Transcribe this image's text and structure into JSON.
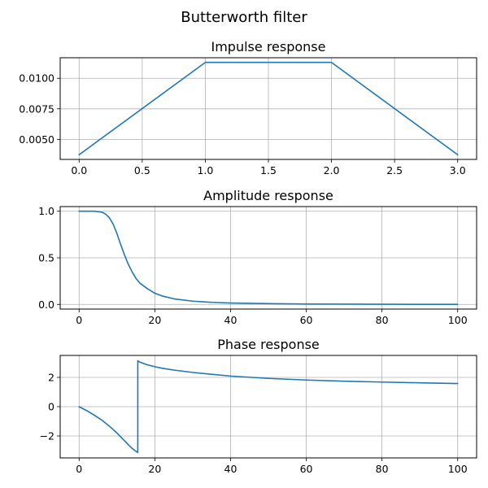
{
  "title": "Butterworth filter",
  "chart_data": [
    {
      "type": "line",
      "title": "Impulse response",
      "xlabel": "",
      "ylabel": "",
      "grid": true,
      "xlim": [
        -0.15,
        3.15
      ],
      "ylim": [
        0.00336,
        0.01168
      ],
      "xticks": [
        0.0,
        0.5,
        1.0,
        1.5,
        2.0,
        2.5,
        3.0
      ],
      "xtick_labels": [
        "0.0",
        "0.5",
        "1.0",
        "1.5",
        "2.0",
        "2.5",
        "3.0"
      ],
      "yticks": [
        0.005,
        0.0075,
        0.01
      ],
      "ytick_labels": [
        "0.0050",
        "0.0075",
        "0.0100"
      ],
      "series": [
        {
          "color": "#1f77b4",
          "x": [
            0,
            1,
            2,
            3
          ],
          "y": [
            0.00374,
            0.0113,
            0.0113,
            0.00374
          ]
        }
      ]
    },
    {
      "type": "line",
      "title": "Amplitude response",
      "xlabel": "",
      "ylabel": "",
      "grid": true,
      "xlim": [
        -5,
        105
      ],
      "ylim": [
        -0.05,
        1.05
      ],
      "xticks": [
        0,
        20,
        40,
        60,
        80,
        100
      ],
      "xtick_labels": [
        "0",
        "20",
        "40",
        "60",
        "80",
        "100"
      ],
      "yticks": [
        0.0,
        0.5,
        1.0
      ],
      "ytick_labels": [
        "0.0",
        "0.5",
        "1.0"
      ],
      "series": [
        {
          "color": "#1f77b4",
          "x": [
            0,
            2,
            4,
            6,
            7,
            8,
            9,
            10,
            11,
            12,
            13,
            14,
            15,
            16,
            18,
            20,
            22,
            25,
            30,
            35,
            40,
            50,
            60,
            70,
            80,
            90,
            100
          ],
          "y": [
            1.0,
            1.0,
            1.0,
            0.99,
            0.97,
            0.93,
            0.86,
            0.76,
            0.64,
            0.53,
            0.43,
            0.35,
            0.28,
            0.23,
            0.17,
            0.12,
            0.09,
            0.06,
            0.035,
            0.022,
            0.015,
            0.008,
            0.004,
            0.003,
            0.002,
            0.001,
            0.001
          ]
        }
      ]
    },
    {
      "type": "line",
      "title": "Phase response",
      "xlabel": "",
      "ylabel": "",
      "grid": true,
      "xlim": [
        -5,
        105
      ],
      "ylim": [
        -3.5,
        3.5
      ],
      "xticks": [
        0,
        20,
        40,
        60,
        80,
        100
      ],
      "xtick_labels": [
        "0",
        "20",
        "40",
        "60",
        "80",
        "100"
      ],
      "yticks": [
        -2,
        0,
        2
      ],
      "ytick_labels": [
        "−2",
        "0",
        "2"
      ],
      "series": [
        {
          "color": "#1f77b4",
          "x": [
            0,
            2,
            4,
            6,
            8,
            10,
            12,
            13,
            14,
            15,
            15.5,
            15.5,
            16,
            17,
            18,
            20,
            22,
            25,
            30,
            35,
            40,
            50,
            60,
            70,
            80,
            90,
            100
          ],
          "y": [
            0.0,
            -0.27,
            -0.58,
            -0.92,
            -1.33,
            -1.8,
            -2.33,
            -2.6,
            -2.85,
            -3.05,
            -3.13,
            3.14,
            3.05,
            2.95,
            2.86,
            2.73,
            2.62,
            2.5,
            2.34,
            2.21,
            2.09,
            1.93,
            1.82,
            1.74,
            1.68,
            1.63,
            1.58
          ]
        }
      ]
    }
  ]
}
